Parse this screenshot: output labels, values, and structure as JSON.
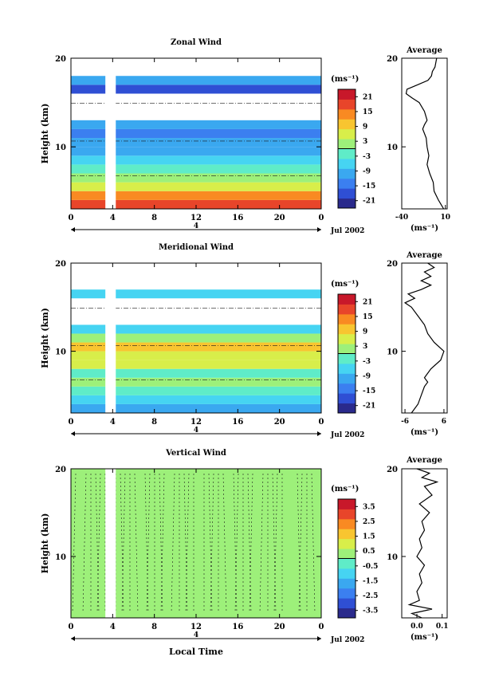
{
  "chart_data": [
    {
      "type": "heatmap",
      "title": "Zonal Wind",
      "ylabel": "Height (km)",
      "xticks": [
        "0",
        "4",
        "8",
        "12",
        "16",
        "20",
        "0"
      ],
      "yticks": [
        "10",
        "20"
      ],
      "ylim": [
        3,
        20
      ],
      "xlim": [
        0,
        24
      ],
      "date_label": "4",
      "date_suffix": "Jul 2002",
      "colorbar": {
        "unit": "(ms⁻¹)",
        "ticks": [
          "21",
          "15",
          "9",
          "3",
          "-3",
          "-9",
          "-15",
          "-21"
        ],
        "range": [
          -24,
          24
        ]
      },
      "gaps": [
        [
          3.3,
          4.3
        ]
      ],
      "layers": [
        {
          "h": 3.0,
          "v": 18
        },
        {
          "h": 4.0,
          "v": 12
        },
        {
          "h": 5.0,
          "v": 6
        },
        {
          "h": 6.0,
          "v": 2
        },
        {
          "h": 7.0,
          "v": -2
        },
        {
          "h": 8.0,
          "v": -8
        },
        {
          "h": 9.0,
          "v": -12
        },
        {
          "h": 10.0,
          "v": -12
        },
        {
          "h": 11.0,
          "v": -14
        },
        {
          "h": 12.0,
          "v": -10
        },
        {
          "h": 13.0,
          "v": null
        },
        {
          "h": 15.0,
          "v": null
        },
        {
          "h": 16.0,
          "v": -20
        },
        {
          "h": 17.0,
          "v": -10
        },
        {
          "h": 18.0,
          "v": null
        },
        {
          "h": 20.0,
          "v": null
        }
      ],
      "average": {
        "title": "Average",
        "xticks": [
          "-40",
          "10"
        ],
        "xlim": [
          -40,
          12
        ],
        "ylim": [
          3,
          20
        ],
        "yticks": [
          "10",
          "20"
        ],
        "unit": "(ms⁻¹)",
        "profile": [
          [
            3.0,
            8
          ],
          [
            3.5,
            5
          ],
          [
            4.0,
            2
          ],
          [
            5.0,
            -3
          ],
          [
            6.0,
            -4
          ],
          [
            7.0,
            -8
          ],
          [
            8.0,
            -11
          ],
          [
            9.0,
            -9
          ],
          [
            10.0,
            -11
          ],
          [
            11.0,
            -12
          ],
          [
            12.0,
            -16
          ],
          [
            12.5,
            -14
          ],
          [
            13.0,
            -11
          ],
          [
            14.0,
            -14
          ],
          [
            15.0,
            -20
          ],
          [
            15.5,
            -28
          ],
          [
            16.0,
            -35
          ],
          [
            16.5,
            -34
          ],
          [
            17.0,
            -22
          ],
          [
            17.5,
            -10
          ],
          [
            18.0,
            -6
          ],
          [
            18.5,
            -5
          ],
          [
            19.0,
            -2
          ],
          [
            20.0,
            0
          ]
        ]
      }
    },
    {
      "type": "heatmap",
      "title": "Meridional Wind",
      "ylabel": "Height (km)",
      "xticks": [
        "0",
        "4",
        "8",
        "12",
        "16",
        "20",
        "0"
      ],
      "yticks": [
        "10",
        "20"
      ],
      "ylim": [
        3,
        20
      ],
      "xlim": [
        0,
        24
      ],
      "date_label": "4",
      "date_suffix": "Jul 2002",
      "colorbar": {
        "unit": "(ms⁻¹)",
        "ticks": [
          "21",
          "15",
          "9",
          "3",
          "-3",
          "-9",
          "-15",
          "-21"
        ],
        "range": [
          -24,
          24
        ]
      },
      "gaps": [
        [
          3.3,
          4.3
        ]
      ],
      "layers": [
        {
          "h": 3.0,
          "v": -12
        },
        {
          "h": 4.0,
          "v": -8
        },
        {
          "h": 5.0,
          "v": -4
        },
        {
          "h": 6.0,
          "v": 2
        },
        {
          "h": 7.0,
          "v": -3
        },
        {
          "h": 8.0,
          "v": 4
        },
        {
          "h": 9.0,
          "v": 7
        },
        {
          "h": 10.0,
          "v": 9
        },
        {
          "h": 11.0,
          "v": 2
        },
        {
          "h": 12.0,
          "v": -6
        },
        {
          "h": 13.0,
          "v": null
        },
        {
          "h": 15.0,
          "v": null
        },
        {
          "h": 16.0,
          "v": -8
        },
        {
          "h": 17.0,
          "v": null
        },
        {
          "h": 20.0,
          "v": null
        }
      ],
      "average": {
        "title": "Average",
        "xticks": [
          "-6",
          "6"
        ],
        "xlim": [
          -7,
          7
        ],
        "ylim": [
          3,
          20
        ],
        "yticks": [
          "10",
          "20"
        ],
        "unit": "(ms⁻¹)",
        "profile": [
          [
            3.0,
            -4
          ],
          [
            4.0,
            -2
          ],
          [
            5.0,
            -1
          ],
          [
            6.0,
            0
          ],
          [
            6.5,
            1
          ],
          [
            7.0,
            0
          ],
          [
            8.0,
            2
          ],
          [
            9.0,
            5
          ],
          [
            10.0,
            6
          ],
          [
            11.0,
            3
          ],
          [
            12.0,
            1
          ],
          [
            13.0,
            0
          ],
          [
            14.0,
            -2
          ],
          [
            15.0,
            -4
          ],
          [
            15.5,
            -6
          ],
          [
            16.0,
            -3
          ],
          [
            16.5,
            -5
          ],
          [
            17.0,
            -1
          ],
          [
            17.5,
            2
          ],
          [
            18.0,
            -1
          ],
          [
            18.5,
            2
          ],
          [
            19.0,
            0
          ],
          [
            19.5,
            3
          ],
          [
            20.0,
            1
          ]
        ]
      }
    },
    {
      "type": "heatmap",
      "title": "Vertical Wind",
      "ylabel": "Height (km)",
      "xlabel": "Local Time",
      "xticks": [
        "0",
        "4",
        "8",
        "12",
        "16",
        "20",
        "0"
      ],
      "yticks": [
        "10",
        "20"
      ],
      "ylim": [
        3,
        20
      ],
      "xlim": [
        0,
        24
      ],
      "date_label": "4",
      "date_suffix": "Jul 2002",
      "colorbar": {
        "unit": "(ms⁻¹)",
        "ticks": [
          "3.5",
          "2.5",
          "1.5",
          "0.5",
          "-0.5",
          "-1.5",
          "-2.5",
          "-3.5"
        ],
        "range": [
          -4,
          4
        ]
      },
      "gaps": [
        [
          3.3,
          4.3
        ]
      ],
      "layers": [
        {
          "h": 3.0,
          "v": 0.1
        },
        {
          "h": 20.0,
          "v": 0.1
        }
      ],
      "average": {
        "title": "Average",
        "xticks": [
          "0.0",
          "0.1"
        ],
        "xlim": [
          -0.06,
          0.12
        ],
        "ylim": [
          3,
          20
        ],
        "yticks": [
          "10",
          "20"
        ],
        "unit": "(ms⁻¹)",
        "profile": [
          [
            3.0,
            0.02
          ],
          [
            3.5,
            -0.02
          ],
          [
            4.0,
            0.06
          ],
          [
            4.5,
            -0.03
          ],
          [
            5.0,
            0.01
          ],
          [
            6.0,
            0.0
          ],
          [
            7.0,
            0.02
          ],
          [
            8.0,
            0.01
          ],
          [
            9.0,
            0.03
          ],
          [
            10.0,
            0.0
          ],
          [
            11.0,
            0.02
          ],
          [
            12.0,
            0.01
          ],
          [
            13.0,
            0.03
          ],
          [
            14.0,
            0.02
          ],
          [
            15.0,
            0.05
          ],
          [
            16.0,
            0.01
          ],
          [
            17.0,
            0.06
          ],
          [
            18.0,
            0.03
          ],
          [
            18.5,
            0.08
          ],
          [
            19.0,
            0.02
          ],
          [
            19.5,
            0.05
          ],
          [
            20.0,
            0.0
          ]
        ]
      }
    }
  ]
}
